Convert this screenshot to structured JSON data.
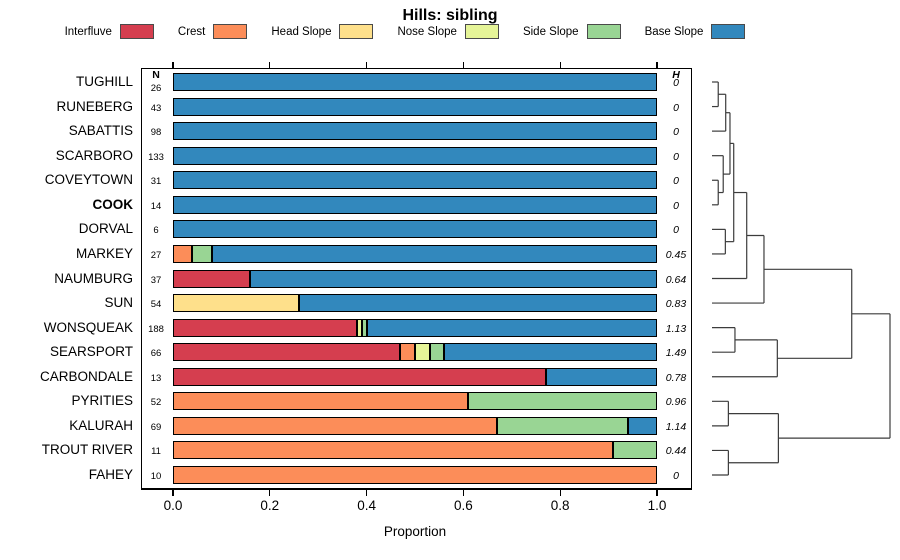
{
  "chart_data": {
    "type": "bar",
    "orientation": "horizontal-stacked",
    "title": "Hills: sibling",
    "xlabel": "Proportion",
    "xlim": [
      0.0,
      1.0
    ],
    "x_ticks": [
      "0.0",
      "0.2",
      "0.4",
      "0.6",
      "0.8",
      "1.0"
    ],
    "grid": false,
    "legend_position": "top",
    "n_header": "N",
    "h_header": "H",
    "series": [
      {
        "name": "Interfluve",
        "color": "#D53E4F"
      },
      {
        "name": "Crest",
        "color": "#FC8D59"
      },
      {
        "name": "Head Slope",
        "color": "#FEE08B"
      },
      {
        "name": "Nose Slope",
        "color": "#E6F598"
      },
      {
        "name": "Side Slope",
        "color": "#99D594"
      },
      {
        "name": "Base Slope",
        "color": "#3288BD"
      }
    ],
    "rows": [
      {
        "label": "TUGHILL",
        "n": 26,
        "h": "0",
        "bold": false,
        "proportions": [
          0,
          0,
          0,
          0,
          0,
          1
        ]
      },
      {
        "label": "RUNEBERG",
        "n": 43,
        "h": "0",
        "bold": false,
        "proportions": [
          0,
          0,
          0,
          0,
          0,
          1
        ]
      },
      {
        "label": "SABATTIS",
        "n": 98,
        "h": "0",
        "bold": false,
        "proportions": [
          0,
          0,
          0,
          0,
          0,
          1
        ]
      },
      {
        "label": "SCARBORO",
        "n": 133,
        "h": "0",
        "bold": false,
        "proportions": [
          0,
          0,
          0,
          0,
          0,
          1
        ]
      },
      {
        "label": "COVEYTOWN",
        "n": 31,
        "h": "0",
        "bold": false,
        "proportions": [
          0,
          0,
          0,
          0,
          0,
          1
        ]
      },
      {
        "label": "COOK",
        "n": 14,
        "h": "0",
        "bold": true,
        "proportions": [
          0,
          0,
          0,
          0,
          0,
          1
        ]
      },
      {
        "label": "DORVAL",
        "n": 6,
        "h": "0",
        "bold": false,
        "proportions": [
          0,
          0,
          0,
          0,
          0,
          1
        ]
      },
      {
        "label": "MARKEY",
        "n": 27,
        "h": "0.45",
        "bold": false,
        "proportions": [
          0,
          0.04,
          0,
          0,
          0.04,
          0.92
        ]
      },
      {
        "label": "NAUMBURG",
        "n": 37,
        "h": "0.64",
        "bold": false,
        "proportions": [
          0.16,
          0,
          0,
          0,
          0,
          0.84
        ]
      },
      {
        "label": "SUN",
        "n": 54,
        "h": "0.83",
        "bold": false,
        "proportions": [
          0,
          0,
          0.26,
          0,
          0,
          0.74
        ]
      },
      {
        "label": "WONSQUEAK",
        "n": 188,
        "h": "1.13",
        "bold": false,
        "proportions": [
          0.38,
          0,
          0,
          0.01,
          0.01,
          0.6
        ]
      },
      {
        "label": "SEARSPORT",
        "n": 66,
        "h": "1.49",
        "bold": false,
        "proportions": [
          0.47,
          0.03,
          0,
          0.03,
          0.03,
          0.44
        ]
      },
      {
        "label": "CARBONDALE",
        "n": 13,
        "h": "0.78",
        "bold": false,
        "proportions": [
          0.77,
          0,
          0,
          0,
          0,
          0.23
        ]
      },
      {
        "label": "PYRITIES",
        "n": 52,
        "h": "0.96",
        "bold": false,
        "proportions": [
          0,
          0.61,
          0,
          0,
          0.39,
          0
        ]
      },
      {
        "label": "KALURAH",
        "n": 69,
        "h": "1.14",
        "bold": false,
        "proportions": [
          0,
          0.67,
          0,
          0,
          0.27,
          0.06
        ]
      },
      {
        "label": "TROUT RIVER",
        "n": 11,
        "h": "0.44",
        "bold": false,
        "proportions": [
          0,
          0.91,
          0,
          0,
          0.09,
          0
        ]
      },
      {
        "label": "FAHEY",
        "n": 10,
        "h": "0",
        "bold": false,
        "proportions": [
          0,
          1,
          0,
          0,
          0,
          0
        ]
      }
    ],
    "dendrogram": {
      "note": "heights normalized 0-1 of root merge; leaves are row indices top-to-bottom",
      "tree": {
        "h": 1.0,
        "children": [
          {
            "h": 0.785,
            "children": [
              {
                "h": 0.292,
                "children": [
                  {
                    "h": 0.195,
                    "children": [
                      {
                        "h": 0.122,
                        "children": [
                          {
                            "h": 0.101,
                            "children": [
                              {
                                "h": 0.077,
                                "children": [
                                  {
                                    "h": 0.035,
                                    "children": [
                                      {
                                        "leaf": 0
                                      },
                                      {
                                        "leaf": 1
                                      }
                                    ]
                                  },
                                  {
                                    "leaf": 2
                                  }
                                ]
                              },
                              {
                                "h": 0.063,
                                "children": [
                                  {
                                    "leaf": 3
                                  },
                                  {
                                    "h": 0.035,
                                    "children": [
                                      {
                                        "leaf": 4
                                      },
                                      {
                                        "leaf": 5
                                      }
                                    ]
                                  }
                                ]
                              }
                            ]
                          },
                          {
                            "h": 0.075,
                            "children": [
                              {
                                "leaf": 6
                              },
                              {
                                "leaf": 7
                              }
                            ]
                          }
                        ]
                      },
                      {
                        "leaf": 8
                      }
                    ]
                  },
                  {
                    "leaf": 9
                  }
                ]
              },
              {
                "h": 0.367,
                "children": [
                  {
                    "h": 0.129,
                    "children": [
                      {
                        "leaf": 10
                      },
                      {
                        "leaf": 11
                      }
                    ]
                  },
                  {
                    "leaf": 12
                  }
                ]
              }
            ]
          },
          {
            "h": 0.373,
            "children": [
              {
                "h": 0.092,
                "children": [
                  {
                    "leaf": 13
                  },
                  {
                    "leaf": 14
                  }
                ]
              },
              {
                "h": 0.092,
                "children": [
                  {
                    "leaf": 15
                  },
                  {
                    "leaf": 16
                  }
                ]
              }
            ]
          }
        ]
      }
    }
  }
}
